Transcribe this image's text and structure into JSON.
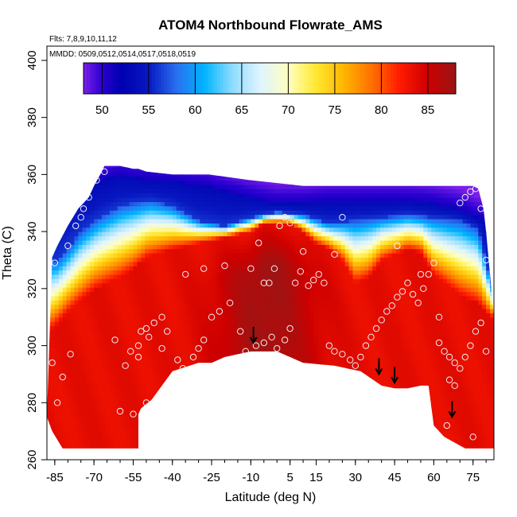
{
  "chart_data": {
    "type": "heatmap",
    "title": "ATOM4 Northbound Flowrate_AMS",
    "flights_label": "Flts: 7,8,9,10,11,12",
    "dates_label": "MMDD: 0509,0512,0514,0517,0518,0519",
    "xlabel": "Latitude (deg N)",
    "ylabel": "Theta (C)",
    "xlim": [
      -88,
      83
    ],
    "ylim": [
      260,
      405
    ],
    "x_ticks": [
      -85,
      -70,
      -55,
      -40,
      -25,
      -10,
      5,
      15,
      30,
      45,
      60,
      75
    ],
    "y_ticks": [
      260,
      280,
      300,
      320,
      340,
      360,
      380,
      400
    ],
    "colorbar": {
      "range": [
        48,
        88
      ],
      "ticks": [
        50,
        55,
        60,
        65,
        70,
        75,
        80,
        85
      ],
      "colors": [
        {
          "v": 48,
          "c": "#7a1fe8"
        },
        {
          "v": 50,
          "c": "#2a00d0"
        },
        {
          "v": 52,
          "c": "#0000b0"
        },
        {
          "v": 55,
          "c": "#0818c0"
        },
        {
          "v": 58,
          "c": "#2a70f0"
        },
        {
          "v": 61,
          "c": "#00b4ff"
        },
        {
          "v": 64,
          "c": "#8fdcff"
        },
        {
          "v": 67,
          "c": "#dff4ff"
        },
        {
          "v": 70,
          "c": "#ffffc0"
        },
        {
          "v": 73,
          "c": "#ffe830"
        },
        {
          "v": 76,
          "c": "#ffb400"
        },
        {
          "v": 79,
          "c": "#ff7000"
        },
        {
          "v": 82,
          "c": "#ff1a00"
        },
        {
          "v": 85,
          "c": "#cc0000"
        },
        {
          "v": 88,
          "c": "#9a1515"
        }
      ]
    },
    "arrows": [
      {
        "lat": -9,
        "theta": 301
      },
      {
        "lat": 39,
        "theta": 290
      },
      {
        "lat": 45,
        "theta": 287
      },
      {
        "lat": 67,
        "theta": 275
      }
    ],
    "upper_boundary": [
      [
        -86,
        331
      ],
      [
        -84,
        335
      ],
      [
        -80,
        342
      ],
      [
        -76,
        348
      ],
      [
        -72,
        352
      ],
      [
        -70,
        356
      ],
      [
        -67,
        361
      ],
      [
        -66,
        363
      ],
      [
        -60,
        363
      ],
      [
        -55,
        362
      ],
      [
        -53,
        362
      ],
      [
        -50,
        361
      ],
      [
        -40,
        360
      ],
      [
        -26,
        360
      ],
      [
        -10,
        358
      ],
      [
        0,
        357
      ],
      [
        10,
        356
      ],
      [
        20,
        356
      ],
      [
        30,
        356
      ],
      [
        40,
        356
      ],
      [
        50,
        356
      ],
      [
        60,
        356
      ],
      [
        70,
        356
      ],
      [
        75,
        356
      ],
      [
        77,
        355
      ],
      [
        79,
        348
      ],
      [
        80,
        340
      ],
      [
        81,
        330
      ],
      [
        82,
        320
      ],
      [
        83,
        310
      ],
      [
        83,
        295
      ]
    ],
    "lower_boundary": [
      [
        83,
        295
      ],
      [
        83,
        264
      ],
      [
        72,
        264
      ],
      [
        64,
        268
      ],
      [
        60,
        272
      ],
      [
        58,
        286
      ],
      [
        55,
        286
      ],
      [
        50,
        285
      ],
      [
        45,
        285
      ],
      [
        40,
        286
      ],
      [
        32,
        291
      ],
      [
        22,
        293
      ],
      [
        10,
        294
      ],
      [
        5,
        296
      ],
      [
        0,
        298
      ],
      [
        -10,
        298
      ],
      [
        -20,
        296
      ],
      [
        -25,
        294
      ],
      [
        -30,
        294
      ],
      [
        -40,
        291
      ],
      [
        -48,
        281
      ],
      [
        -52,
        278
      ],
      [
        -53,
        276
      ],
      [
        -53,
        264
      ],
      [
        -82,
        264
      ],
      [
        -86,
        270
      ],
      [
        -88,
        275
      ]
    ],
    "surface": {
      "blue_core_top": [
        [
          -72,
          357
        ],
        [
          -60,
          360
        ],
        [
          -55,
          359
        ],
        [
          -40,
          358
        ],
        [
          -26,
          356
        ],
        [
          -10,
          352
        ],
        [
          0,
          350
        ],
        [
          10,
          350
        ],
        [
          20,
          351
        ],
        [
          30,
          351
        ],
        [
          40,
          351
        ],
        [
          50,
          351
        ],
        [
          60,
          350
        ],
        [
          70,
          348
        ],
        [
          77,
          345
        ]
      ],
      "deep_blue_bottom": [
        [
          -84,
          330
        ],
        [
          -80,
          334
        ],
        [
          -75,
          340
        ],
        [
          -68,
          345
        ],
        [
          -60,
          349
        ],
        [
          -55,
          350
        ],
        [
          -48,
          351
        ],
        [
          -40,
          349
        ],
        [
          -30,
          344
        ],
        [
          -20,
          342
        ],
        [
          -10,
          345
        ],
        [
          0,
          347
        ],
        [
          10,
          346
        ],
        [
          20,
          343
        ],
        [
          30,
          344
        ],
        [
          40,
          345
        ],
        [
          50,
          346
        ],
        [
          60,
          345
        ],
        [
          70,
          344
        ],
        [
          77,
          341
        ],
        [
          82,
          322
        ]
      ],
      "red_front": [
        [
          -86,
          306
        ],
        [
          -80,
          312
        ],
        [
          -70,
          320
        ],
        [
          -60,
          324
        ],
        [
          -55,
          327
        ],
        [
          -50,
          331
        ],
        [
          -40,
          334
        ],
        [
          -30,
          336
        ],
        [
          -20,
          338
        ],
        [
          -10,
          340
        ],
        [
          -5,
          343
        ],
        [
          0,
          343
        ],
        [
          5,
          343
        ],
        [
          10,
          340
        ],
        [
          15,
          336
        ],
        [
          20,
          334
        ],
        [
          25,
          330
        ],
        [
          30,
          322
        ],
        [
          35,
          324
        ],
        [
          40,
          330
        ],
        [
          45,
          332
        ],
        [
          50,
          334
        ],
        [
          55,
          333
        ],
        [
          60,
          325
        ],
        [
          70,
          318
        ],
        [
          77,
          315
        ],
        [
          82,
          310
        ]
      ]
    },
    "sample_points": [
      [
        -86,
        294
      ],
      [
        -84,
        280
      ],
      [
        -82,
        289
      ],
      [
        -79,
        297
      ],
      [
        -85,
        329
      ],
      [
        -80,
        335
      ],
      [
        -77,
        342
      ],
      [
        -75,
        345
      ],
      [
        -74,
        348
      ],
      [
        -72,
        352
      ],
      [
        -69,
        358
      ],
      [
        -66,
        361
      ],
      [
        -62,
        302
      ],
      [
        -58,
        293
      ],
      [
        -56,
        298
      ],
      [
        -53,
        296
      ],
      [
        -53,
        300
      ],
      [
        -52,
        305
      ],
      [
        -50,
        306
      ],
      [
        -49,
        303
      ],
      [
        -47,
        308
      ],
      [
        -44,
        299
      ],
      [
        -44,
        310
      ],
      [
        -42,
        305
      ],
      [
        -38,
        295
      ],
      [
        -36,
        292
      ],
      [
        -32,
        296
      ],
      [
        -30,
        299
      ],
      [
        -28,
        302
      ],
      [
        -25,
        310
      ],
      [
        -22,
        312
      ],
      [
        -18,
        315
      ],
      [
        -14,
        305
      ],
      [
        -12,
        298
      ],
      [
        -8,
        300
      ],
      [
        -5,
        301
      ],
      [
        -2,
        303
      ],
      [
        0,
        299
      ],
      [
        3,
        302
      ],
      [
        5,
        306
      ],
      [
        -7,
        336
      ],
      [
        -5,
        322
      ],
      [
        -3,
        322
      ],
      [
        -1,
        327
      ],
      [
        1,
        342
      ],
      [
        3,
        345
      ],
      [
        5,
        343
      ],
      [
        7,
        322
      ],
      [
        9,
        326
      ],
      [
        12,
        321
      ],
      [
        14,
        323
      ],
      [
        16,
        325
      ],
      [
        18,
        322
      ],
      [
        20,
        300
      ],
      [
        22,
        298
      ],
      [
        25,
        297
      ],
      [
        28,
        295
      ],
      [
        30,
        293
      ],
      [
        32,
        296
      ],
      [
        34,
        300
      ],
      [
        36,
        303
      ],
      [
        38,
        306
      ],
      [
        40,
        309
      ],
      [
        42,
        312
      ],
      [
        44,
        314
      ],
      [
        46,
        317
      ],
      [
        48,
        319
      ],
      [
        50,
        322
      ],
      [
        52,
        318
      ],
      [
        54,
        315
      ],
      [
        56,
        320
      ],
      [
        58,
        325
      ],
      [
        60,
        329
      ],
      [
        62,
        301
      ],
      [
        64,
        298
      ],
      [
        66,
        296
      ],
      [
        68,
        294
      ],
      [
        70,
        292
      ],
      [
        72,
        296
      ],
      [
        74,
        300
      ],
      [
        76,
        305
      ],
      [
        78,
        308
      ],
      [
        80,
        298
      ],
      [
        -60,
        277
      ],
      [
        -55,
        276
      ],
      [
        -50,
        280
      ],
      [
        -35,
        325
      ],
      [
        -28,
        327
      ],
      [
        -20,
        328
      ],
      [
        -10,
        327
      ],
      [
        10,
        333
      ],
      [
        22,
        332
      ],
      [
        25,
        345
      ],
      [
        46,
        335
      ],
      [
        55,
        325
      ],
      [
        62,
        310
      ],
      [
        66,
        288
      ],
      [
        68,
        286
      ],
      [
        70,
        350
      ],
      [
        72,
        352
      ],
      [
        74,
        354
      ],
      [
        76,
        355
      ],
      [
        78,
        348
      ],
      [
        80,
        330
      ],
      [
        75,
        268
      ],
      [
        65,
        272
      ]
    ]
  }
}
